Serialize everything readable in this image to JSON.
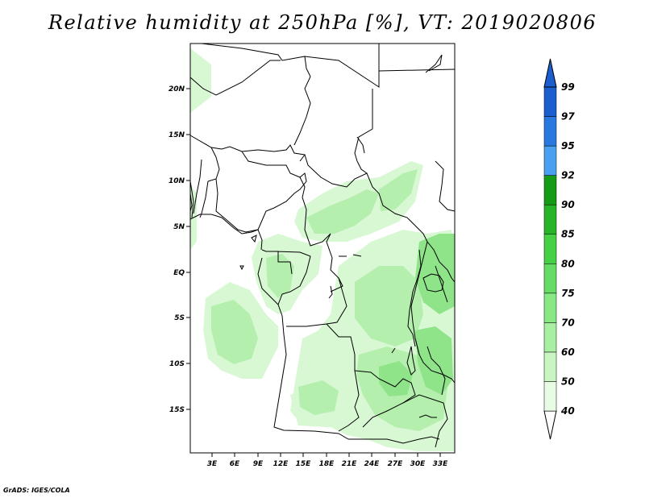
{
  "title": "Relative humidity at 250hPa [%], VT: 2019020806",
  "credit": "GrADS: IGES/COLA",
  "map": {
    "lat_labels": [
      "20N",
      "15N",
      "10N",
      "5N",
      "EQ",
      "5S",
      "10S",
      "15S"
    ],
    "lon_labels": [
      "3E",
      "6E",
      "9E",
      "12E",
      "15E",
      "18E",
      "21E",
      "24E",
      "27E",
      "30E",
      "33E"
    ]
  },
  "colorbar": {
    "levels": [
      "40",
      "50",
      "60",
      "70",
      "75",
      "80",
      "85",
      "90",
      "92",
      "95",
      "97",
      "99"
    ],
    "colors": [
      "#ffffff",
      "#e8fce4",
      "#c8f5c2",
      "#a8efa2",
      "#88e884",
      "#66dc64",
      "#46d046",
      "#28b428",
      "#159b15",
      "#4a9ff0",
      "#2878e0",
      "#1a5ed0"
    ]
  },
  "colors": {
    "light_green": "#d8f8d4",
    "mid_green": "#b4efae",
    "green": "#8fe489",
    "border": "#000000"
  }
}
